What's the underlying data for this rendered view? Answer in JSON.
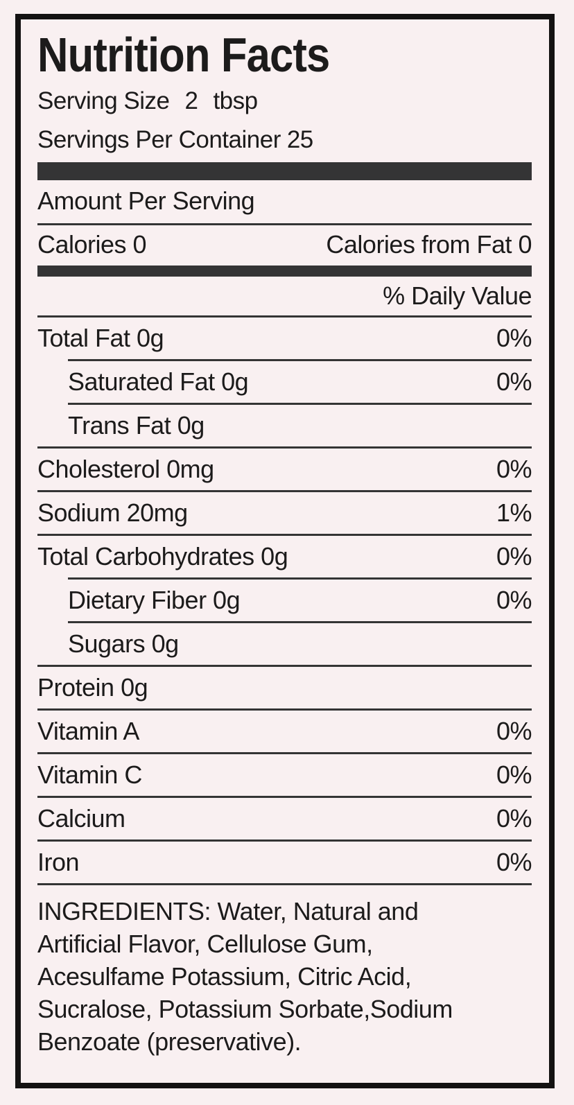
{
  "label": {
    "title": "Nutrition Facts",
    "serving_size": {
      "label": "Serving Size",
      "amount": "2",
      "unit": "tbsp"
    },
    "servings_per_container": {
      "label": "Servings Per Container",
      "value": "25"
    },
    "amount_per_serving": "Amount Per Serving",
    "calories": "Calories 0",
    "calories_from_fat": "Calories from Fat 0",
    "daily_value_header": "% Daily Value",
    "rows": [
      {
        "name": "Total Fat 0g",
        "dv": "0%"
      },
      {
        "name": "Saturated Fat 0g",
        "dv": "0%"
      },
      {
        "name": "Trans Fat 0g",
        "dv": ""
      },
      {
        "name": "Cholesterol 0mg",
        "dv": "0%"
      },
      {
        "name": "Sodium 20mg",
        "dv": "1%"
      },
      {
        "name": "Total Carbohydrates 0g",
        "dv": "0%"
      },
      {
        "name": "Dietary Fiber 0g",
        "dv": "0%"
      },
      {
        "name": "Sugars 0g",
        "dv": ""
      },
      {
        "name": "Protein 0g",
        "dv": ""
      },
      {
        "name": "Vitamin A",
        "dv": "0%"
      },
      {
        "name": "Vitamin C",
        "dv": "0%"
      },
      {
        "name": "Calcium",
        "dv": "0%"
      },
      {
        "name": "Iron",
        "dv": "0%"
      }
    ],
    "ingredients_lines": [
      "INGREDIENTS: Water, Natural and",
      "Artificial Flavor, Cellulose Gum,",
      "Acesulfame Potassium, Citric Acid,",
      "Sucralose, Potassium Sorbate,Sodium",
      "Benzoate (preservative)."
    ],
    "colors": {
      "background": "#f9f0f1",
      "bar": "#343435",
      "rule": "#343434",
      "text": "#1c1b1b",
      "border": "#141212"
    }
  }
}
